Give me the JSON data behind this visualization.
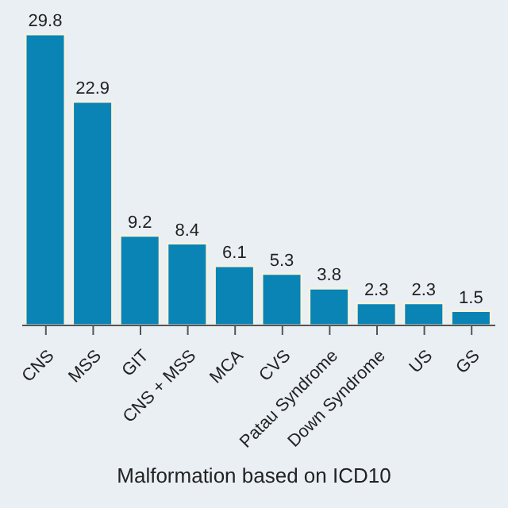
{
  "chart_data": {
    "type": "bar",
    "xlabel": "Malformation based on ICD10",
    "categories": [
      "CNS",
      "MSS",
      "GIT",
      "CNS + MSS",
      "MCA",
      "CVS",
      "Patau Syndrome",
      "Down Syndrome",
      "US",
      "GS"
    ],
    "values": [
      29.8,
      22.9,
      9.2,
      8.4,
      6.1,
      5.3,
      3.8,
      2.3,
      2.3,
      1.5
    ],
    "color": "#0a83b5",
    "data_labels": true,
    "tick_labels": "x"
  }
}
